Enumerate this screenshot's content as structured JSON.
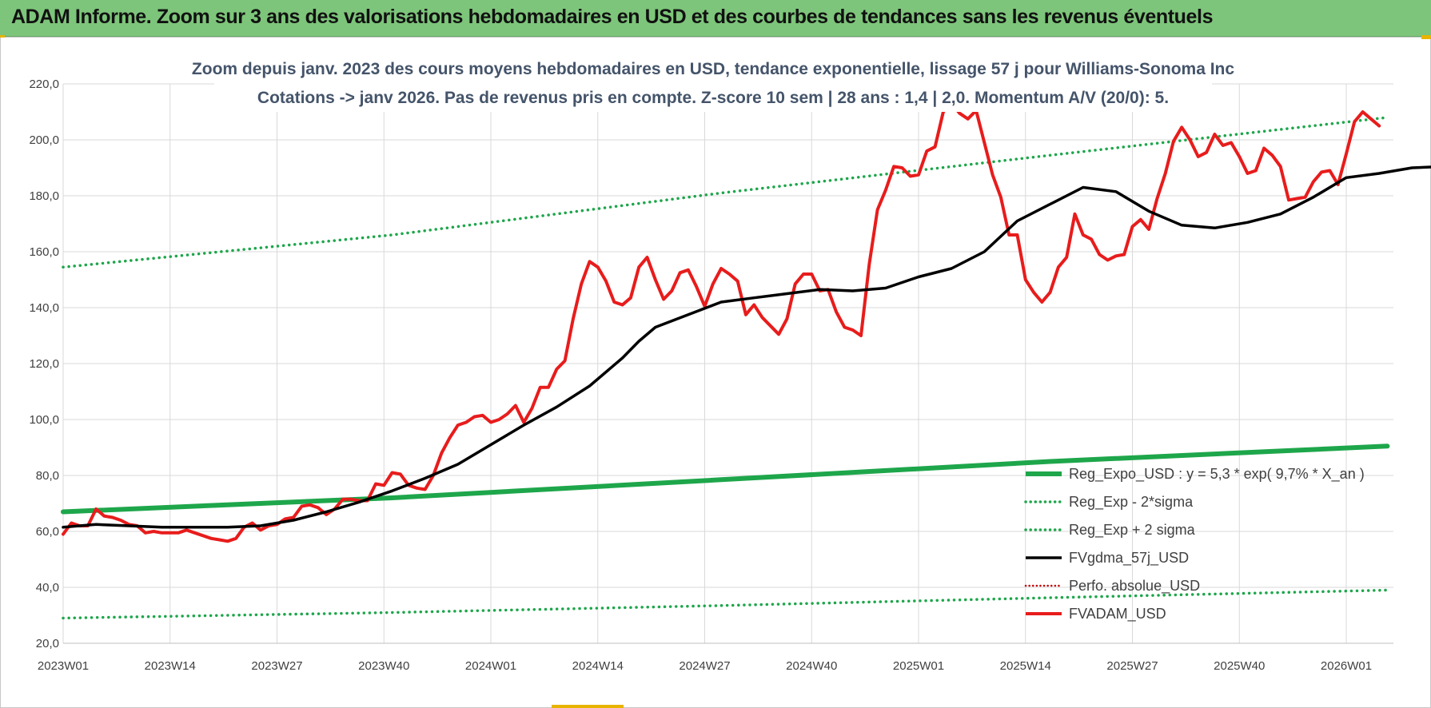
{
  "banner": {
    "title": "ADAM Informe. Zoom sur 3 ans des valorisations hebdomadaires en USD et des courbes de tendances sans les revenus éventuels"
  },
  "colors": {
    "banner_bg": "#7dc57a",
    "trend_green": "#1ea64b",
    "moving_average": "#000000",
    "price_red": "#e81c1c",
    "perfo_dotted_red": "#c00000",
    "accent": "#e8b400"
  },
  "chart_data": {
    "type": "line",
    "title_lines": [
      "Zoom depuis janv. 2023 des cours moyens hebdomadaires en USD, tendance exponentielle, lissage 57 j pour Williams-Sonoma Inc",
      "Cotations -> janv 2026. Pas de revenus pris en compte. Z-score 10 sem | 28 ans : 1,4 | 2,0. Momentum A/V (20/0): 5."
    ],
    "xlabel": "",
    "ylabel": "",
    "ylim": [
      20,
      220
    ],
    "y_ticks": [
      "20,0",
      "40,0",
      "60,0",
      "80,0",
      "100,0",
      "120,0",
      "140,0",
      "160,0",
      "180,0",
      "200,0",
      "220,0"
    ],
    "x_ticks": [
      "2023W01",
      "2023W14",
      "2023W27",
      "2023W40",
      "2024W01",
      "2024W14",
      "2024W27",
      "2024W40",
      "2025W01",
      "2025W14",
      "2025W27",
      "2025W40",
      "2026W01"
    ],
    "x_range_weeks": [
      0,
      161
    ],
    "grid": true,
    "legend_position": "bottom-right",
    "series": [
      {
        "name": "Reg_Expo_USD : y = 5,3 * exp( 9,7% * X_an )",
        "style": "solid-thick",
        "color": "#1ea64b",
        "points": [
          [
            0,
            67.0
          ],
          [
            40,
            72.0
          ],
          [
            80,
            78.5
          ],
          [
            120,
            85.0
          ],
          [
            161,
            90.5
          ]
        ]
      },
      {
        "name": "Reg_Exp - 2*sigma",
        "style": "dotted",
        "color": "#1ea64b",
        "points": [
          [
            0,
            29.0
          ],
          [
            40,
            31.0
          ],
          [
            80,
            33.5
          ],
          [
            120,
            36.3
          ],
          [
            161,
            39.0
          ]
        ]
      },
      {
        "name": "Reg_Exp + 2 sigma",
        "style": "dotted",
        "color": "#1ea64b",
        "points": [
          [
            0,
            154.5
          ],
          [
            40,
            166.0
          ],
          [
            80,
            181.0
          ],
          [
            120,
            194.5
          ],
          [
            161,
            208.0
          ]
        ]
      },
      {
        "name": "FVgdma_57j_USD",
        "style": "solid",
        "color": "#000000",
        "points": [
          [
            0,
            61.5
          ],
          [
            4,
            62.5
          ],
          [
            8,
            62.0
          ],
          [
            12,
            61.5
          ],
          [
            16,
            61.5
          ],
          [
            20,
            61.5
          ],
          [
            24,
            62.0
          ],
          [
            28,
            64.0
          ],
          [
            32,
            67.0
          ],
          [
            36,
            70.5
          ],
          [
            40,
            74.5
          ],
          [
            44,
            79.0
          ],
          [
            48,
            84.0
          ],
          [
            52,
            91.0
          ],
          [
            56,
            98.0
          ],
          [
            60,
            104.5
          ],
          [
            64,
            112.0
          ],
          [
            68,
            122.0
          ],
          [
            70,
            128.0
          ],
          [
            72,
            133.0
          ],
          [
            76,
            137.5
          ],
          [
            80,
            142.0
          ],
          [
            84,
            143.5
          ],
          [
            88,
            145.0
          ],
          [
            92,
            146.5
          ],
          [
            96,
            146.0
          ],
          [
            100,
            147.0
          ],
          [
            104,
            151.0
          ],
          [
            108,
            154.0
          ],
          [
            112,
            160.0
          ],
          [
            116,
            171.0
          ],
          [
            120,
            177.0
          ],
          [
            124,
            183.0
          ],
          [
            128,
            181.5
          ],
          [
            132,
            174.5
          ],
          [
            136,
            169.5
          ],
          [
            140,
            168.5
          ],
          [
            144,
            170.5
          ],
          [
            148,
            173.5
          ],
          [
            152,
            179.5
          ],
          [
            156,
            186.5
          ],
          [
            160,
            188.0
          ],
          [
            164,
            190.0
          ],
          [
            168,
            190.5
          ],
          [
            172,
            191.0
          ],
          [
            176,
            190.5
          ],
          [
            180,
            193.0
          ],
          [
            184,
            195.5
          ],
          [
            187,
            200.0
          ],
          [
            188,
            200.0
          ]
        ]
      },
      {
        "name": "Perfo. absolue_USD",
        "style": "dotted",
        "color": "#c00000",
        "points": []
      },
      {
        "name": "FVADAM_USD",
        "style": "solid-thick",
        "color": "#e81c1c",
        "points": [
          [
            0,
            59.0
          ],
          [
            1,
            63.0
          ],
          [
            2,
            62.0
          ],
          [
            3,
            62.0
          ],
          [
            4,
            68.0
          ],
          [
            5,
            65.5
          ],
          [
            6,
            65.0
          ],
          [
            7,
            64.0
          ],
          [
            8,
            62.5
          ],
          [
            9,
            62.0
          ],
          [
            10,
            59.5
          ],
          [
            11,
            60.0
          ],
          [
            12,
            59.5
          ],
          [
            13,
            59.5
          ],
          [
            14,
            59.5
          ],
          [
            15,
            60.5
          ],
          [
            16,
            59.5
          ],
          [
            17,
            58.5
          ],
          [
            18,
            57.5
          ],
          [
            19,
            57.0
          ],
          [
            20,
            56.5
          ],
          [
            21,
            57.5
          ],
          [
            22,
            61.5
          ],
          [
            23,
            63.0
          ],
          [
            24,
            60.5
          ],
          [
            25,
            62.0
          ],
          [
            26,
            62.5
          ],
          [
            27,
            64.5
          ],
          [
            28,
            65.0
          ],
          [
            29,
            69.0
          ],
          [
            30,
            69.5
          ],
          [
            31,
            68.5
          ],
          [
            32,
            66.0
          ],
          [
            33,
            68.0
          ],
          [
            34,
            71.5
          ],
          [
            35,
            71.5
          ],
          [
            36,
            71.0
          ],
          [
            37,
            71.0
          ],
          [
            38,
            77.0
          ],
          [
            39,
            76.5
          ],
          [
            40,
            81.0
          ],
          [
            41,
            80.5
          ],
          [
            42,
            76.5
          ],
          [
            43,
            75.5
          ],
          [
            44,
            75.0
          ],
          [
            45,
            80.0
          ],
          [
            46,
            88.0
          ],
          [
            47,
            93.5
          ],
          [
            48,
            98.0
          ],
          [
            49,
            99.0
          ],
          [
            50,
            101.0
          ],
          [
            51,
            101.5
          ],
          [
            52,
            99.0
          ],
          [
            53,
            100.0
          ],
          [
            54,
            102.0
          ],
          [
            55,
            105.0
          ],
          [
            56,
            99.0
          ],
          [
            57,
            104.0
          ],
          [
            58,
            111.5
          ],
          [
            59,
            111.5
          ],
          [
            60,
            118.0
          ],
          [
            61,
            121.0
          ],
          [
            62,
            136.0
          ],
          [
            63,
            148.5
          ],
          [
            64,
            156.5
          ],
          [
            65,
            154.5
          ],
          [
            66,
            149.5
          ],
          [
            67,
            142.0
          ],
          [
            68,
            141.0
          ],
          [
            69,
            143.5
          ],
          [
            70,
            154.5
          ],
          [
            71,
            158.0
          ],
          [
            72,
            150.0
          ],
          [
            73,
            143.0
          ],
          [
            74,
            146.0
          ],
          [
            75,
            152.5
          ],
          [
            76,
            153.5
          ],
          [
            77,
            147.5
          ],
          [
            78,
            140.5
          ],
          [
            79,
            148.5
          ],
          [
            80,
            154.0
          ],
          [
            81,
            152.0
          ],
          [
            82,
            149.5
          ],
          [
            83,
            137.5
          ],
          [
            84,
            141.0
          ],
          [
            85,
            136.5
          ],
          [
            86,
            133.5
          ],
          [
            87,
            130.5
          ],
          [
            88,
            136.0
          ],
          [
            89,
            148.5
          ],
          [
            90,
            152.0
          ],
          [
            91,
            152.0
          ],
          [
            92,
            146.0
          ],
          [
            93,
            146.5
          ],
          [
            94,
            138.5
          ],
          [
            95,
            133.0
          ],
          [
            96,
            132.0
          ],
          [
            97,
            130.0
          ],
          [
            98,
            155.5
          ],
          [
            99,
            175.0
          ],
          [
            100,
            182.0
          ],
          [
            101,
            190.5
          ],
          [
            102,
            190.0
          ],
          [
            103,
            187.0
          ],
          [
            104,
            187.5
          ],
          [
            105,
            196.0
          ],
          [
            106,
            197.5
          ],
          [
            107,
            210.0
          ],
          [
            108,
            213.0
          ],
          [
            109,
            209.5
          ],
          [
            110,
            207.5
          ],
          [
            111,
            210.5
          ],
          [
            112,
            199.0
          ],
          [
            113,
            187.5
          ],
          [
            114,
            179.5
          ],
          [
            115,
            166.0
          ],
          [
            116,
            166.0
          ],
          [
            117,
            150.0
          ],
          [
            118,
            145.5
          ],
          [
            119,
            142.0
          ],
          [
            120,
            145.5
          ],
          [
            121,
            154.5
          ],
          [
            122,
            158.0
          ],
          [
            123,
            173.5
          ],
          [
            124,
            166.0
          ],
          [
            125,
            164.5
          ],
          [
            126,
            159.0
          ],
          [
            127,
            157.0
          ],
          [
            128,
            158.5
          ],
          [
            129,
            159.0
          ],
          [
            130,
            169.0
          ],
          [
            131,
            171.5
          ],
          [
            132,
            168.0
          ],
          [
            133,
            179.0
          ],
          [
            134,
            188.0
          ],
          [
            135,
            199.5
          ],
          [
            136,
            204.5
          ],
          [
            137,
            200.0
          ],
          [
            138,
            194.0
          ],
          [
            139,
            195.5
          ],
          [
            140,
            202.0
          ],
          [
            141,
            198.0
          ],
          [
            142,
            199.0
          ],
          [
            143,
            194.0
          ],
          [
            144,
            188.0
          ],
          [
            145,
            189.0
          ],
          [
            146,
            197.0
          ],
          [
            147,
            194.5
          ],
          [
            148,
            190.5
          ],
          [
            149,
            178.5
          ],
          [
            150,
            179.0
          ],
          [
            151,
            179.5
          ],
          [
            152,
            185.0
          ],
          [
            153,
            188.5
          ],
          [
            154,
            189.0
          ],
          [
            155,
            184.0
          ],
          [
            156,
            195.0
          ],
          [
            157,
            206.5
          ],
          [
            158,
            210.0
          ],
          [
            159,
            207.5
          ],
          [
            160,
            205.0
          ]
        ]
      }
    ]
  }
}
